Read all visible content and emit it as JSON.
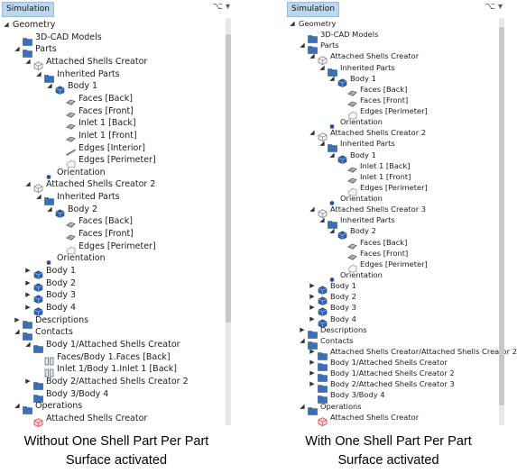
{
  "left": {
    "panel_title": "Simulation",
    "caption_line1": "Without One Shell Part Per Part",
    "caption_line2": "Surface activated",
    "tree": [
      {
        "d": 0,
        "exp": "open",
        "icon": "none",
        "label": "Geometry"
      },
      {
        "d": 1,
        "exp": "",
        "icon": "folder",
        "label": "3D-CAD Models"
      },
      {
        "d": 1,
        "exp": "open",
        "icon": "folder",
        "label": "Parts"
      },
      {
        "d": 2,
        "exp": "open",
        "icon": "shell",
        "label": "Attached Shells Creator"
      },
      {
        "d": 3,
        "exp": "open",
        "icon": "folder",
        "label": "Inherited Parts"
      },
      {
        "d": 4,
        "exp": "open",
        "icon": "body",
        "label": "Body 1"
      },
      {
        "d": 5,
        "exp": "",
        "icon": "surface",
        "label": "Faces [Back]"
      },
      {
        "d": 5,
        "exp": "",
        "icon": "surface",
        "label": "Faces [Front]"
      },
      {
        "d": 5,
        "exp": "",
        "icon": "surface",
        "label": "Inlet 1 [Back]"
      },
      {
        "d": 5,
        "exp": "",
        "icon": "surface",
        "label": "Inlet 1 [Front]"
      },
      {
        "d": 5,
        "exp": "",
        "icon": "edge",
        "label": "Edges [Interior]"
      },
      {
        "d": 5,
        "exp": "",
        "icon": "edgebox",
        "label": "Edges [Perimeter]"
      },
      {
        "d": 3,
        "exp": "",
        "icon": "dot",
        "label": "Orientation"
      },
      {
        "d": 2,
        "exp": "open",
        "icon": "shell",
        "label": "Attached Shells Creator 2"
      },
      {
        "d": 3,
        "exp": "open",
        "icon": "folder",
        "label": "Inherited Parts"
      },
      {
        "d": 4,
        "exp": "open",
        "icon": "body",
        "label": "Body 2"
      },
      {
        "d": 5,
        "exp": "",
        "icon": "surface",
        "label": "Faces [Back]"
      },
      {
        "d": 5,
        "exp": "",
        "icon": "surface",
        "label": "Faces [Front]"
      },
      {
        "d": 5,
        "exp": "",
        "icon": "edgebox",
        "label": "Edges [Perimeter]"
      },
      {
        "d": 3,
        "exp": "",
        "icon": "dot",
        "label": "Orientation"
      },
      {
        "d": 2,
        "exp": "closed",
        "icon": "body",
        "label": "Body 1"
      },
      {
        "d": 2,
        "exp": "closed",
        "icon": "body",
        "label": "Body 2"
      },
      {
        "d": 2,
        "exp": "closed",
        "icon": "body",
        "label": "Body 3"
      },
      {
        "d": 2,
        "exp": "closed",
        "icon": "body",
        "label": "Body 4"
      },
      {
        "d": 1,
        "exp": "closed",
        "icon": "folder",
        "label": "Descriptions"
      },
      {
        "d": 1,
        "exp": "open",
        "icon": "folder",
        "label": "Contacts"
      },
      {
        "d": 2,
        "exp": "open",
        "icon": "folder",
        "label": "Body 1/Attached Shells Creator"
      },
      {
        "d": 3,
        "exp": "",
        "icon": "contact",
        "label": "Faces/Body 1.Faces [Back]"
      },
      {
        "d": 3,
        "exp": "",
        "icon": "contact",
        "label": "Inlet 1/Body 1.Inlet 1 [Back]"
      },
      {
        "d": 2,
        "exp": "closed",
        "icon": "folder",
        "label": "Body 2/Attached Shells Creator 2"
      },
      {
        "d": 2,
        "exp": "",
        "icon": "folder",
        "label": "Body 3/Body 4"
      },
      {
        "d": 1,
        "exp": "open",
        "icon": "folder",
        "label": "Operations"
      },
      {
        "d": 2,
        "exp": "",
        "icon": "operation",
        "label": "Attached Shells Creator"
      }
    ]
  },
  "right": {
    "panel_title": "Simulation",
    "caption_line1": "With One Shell Part Per Part",
    "caption_line2": "Surface activated",
    "tree": [
      {
        "d": 0,
        "exp": "open",
        "icon": "none",
        "label": "Geometry"
      },
      {
        "d": 1,
        "exp": "",
        "icon": "folder",
        "label": "3D-CAD Models"
      },
      {
        "d": 1,
        "exp": "open",
        "icon": "folder",
        "label": "Parts"
      },
      {
        "d": 2,
        "exp": "open",
        "icon": "shell",
        "label": "Attached Shells Creator"
      },
      {
        "d": 3,
        "exp": "open",
        "icon": "folder",
        "label": "Inherited Parts"
      },
      {
        "d": 4,
        "exp": "open",
        "icon": "body",
        "label": "Body 1"
      },
      {
        "d": 5,
        "exp": "",
        "icon": "surface",
        "label": "Faces [Back]"
      },
      {
        "d": 5,
        "exp": "",
        "icon": "surface",
        "label": "Faces [Front]"
      },
      {
        "d": 5,
        "exp": "",
        "icon": "edgebox",
        "label": "Edges [Perimeter]"
      },
      {
        "d": 3,
        "exp": "",
        "icon": "dot",
        "label": "Orientation"
      },
      {
        "d": 2,
        "exp": "open",
        "icon": "shell",
        "label": "Attached Shells Creator 2"
      },
      {
        "d": 3,
        "exp": "open",
        "icon": "folder",
        "label": "Inherited Parts"
      },
      {
        "d": 4,
        "exp": "open",
        "icon": "body",
        "label": "Body 1"
      },
      {
        "d": 5,
        "exp": "",
        "icon": "surface",
        "label": "Inlet 1 [Back]"
      },
      {
        "d": 5,
        "exp": "",
        "icon": "surface",
        "label": "Inlet 1 [Front]"
      },
      {
        "d": 5,
        "exp": "",
        "icon": "edgebox",
        "label": "Edges [Perimeter]"
      },
      {
        "d": 3,
        "exp": "",
        "icon": "dot",
        "label": "Orientation"
      },
      {
        "d": 2,
        "exp": "open",
        "icon": "shell",
        "label": "Attached Shells Creator 3"
      },
      {
        "d": 3,
        "exp": "open",
        "icon": "folder",
        "label": "Inherited Parts"
      },
      {
        "d": 4,
        "exp": "open",
        "icon": "body",
        "label": "Body 2"
      },
      {
        "d": 5,
        "exp": "",
        "icon": "surface",
        "label": "Faces [Back]"
      },
      {
        "d": 5,
        "exp": "",
        "icon": "surface",
        "label": "Faces [Front]"
      },
      {
        "d": 5,
        "exp": "",
        "icon": "edgebox",
        "label": "Edges [Perimeter]"
      },
      {
        "d": 3,
        "exp": "",
        "icon": "dot",
        "label": "Orientation"
      },
      {
        "d": 2,
        "exp": "closed",
        "icon": "body",
        "label": "Body 1"
      },
      {
        "d": 2,
        "exp": "closed",
        "icon": "body",
        "label": "Body 2"
      },
      {
        "d": 2,
        "exp": "closed",
        "icon": "body",
        "label": "Body 3"
      },
      {
        "d": 2,
        "exp": "closed",
        "icon": "body",
        "label": "Body 4"
      },
      {
        "d": 1,
        "exp": "closed",
        "icon": "folder",
        "label": "Descriptions"
      },
      {
        "d": 1,
        "exp": "open",
        "icon": "folder",
        "label": "Contacts"
      },
      {
        "d": 2,
        "exp": "closed",
        "icon": "folder",
        "label": "Attached Shells Creator/Attached Shells Creator 2"
      },
      {
        "d": 2,
        "exp": "closed",
        "icon": "folder",
        "label": "Body 1/Attached Shells Creator"
      },
      {
        "d": 2,
        "exp": "closed",
        "icon": "folder",
        "label": "Body 1/Attached Shells Creator 2"
      },
      {
        "d": 2,
        "exp": "closed",
        "icon": "folder",
        "label": "Body 2/Attached Shells Creator 3"
      },
      {
        "d": 2,
        "exp": "",
        "icon": "folder",
        "label": "Body 3/Body 4"
      },
      {
        "d": 1,
        "exp": "open",
        "icon": "folder",
        "label": "Operations"
      },
      {
        "d": 2,
        "exp": "",
        "icon": "operation",
        "label": "Attached Shells Creator"
      }
    ]
  },
  "icons": {
    "folder_color": "#3b6fb6",
    "body_color": "#2f63ae",
    "surface_color": "#4a4a4a",
    "operation_color": "#d9363e",
    "orientation_color": "#2b4fa8",
    "selection_color": "#bcd6ec"
  }
}
